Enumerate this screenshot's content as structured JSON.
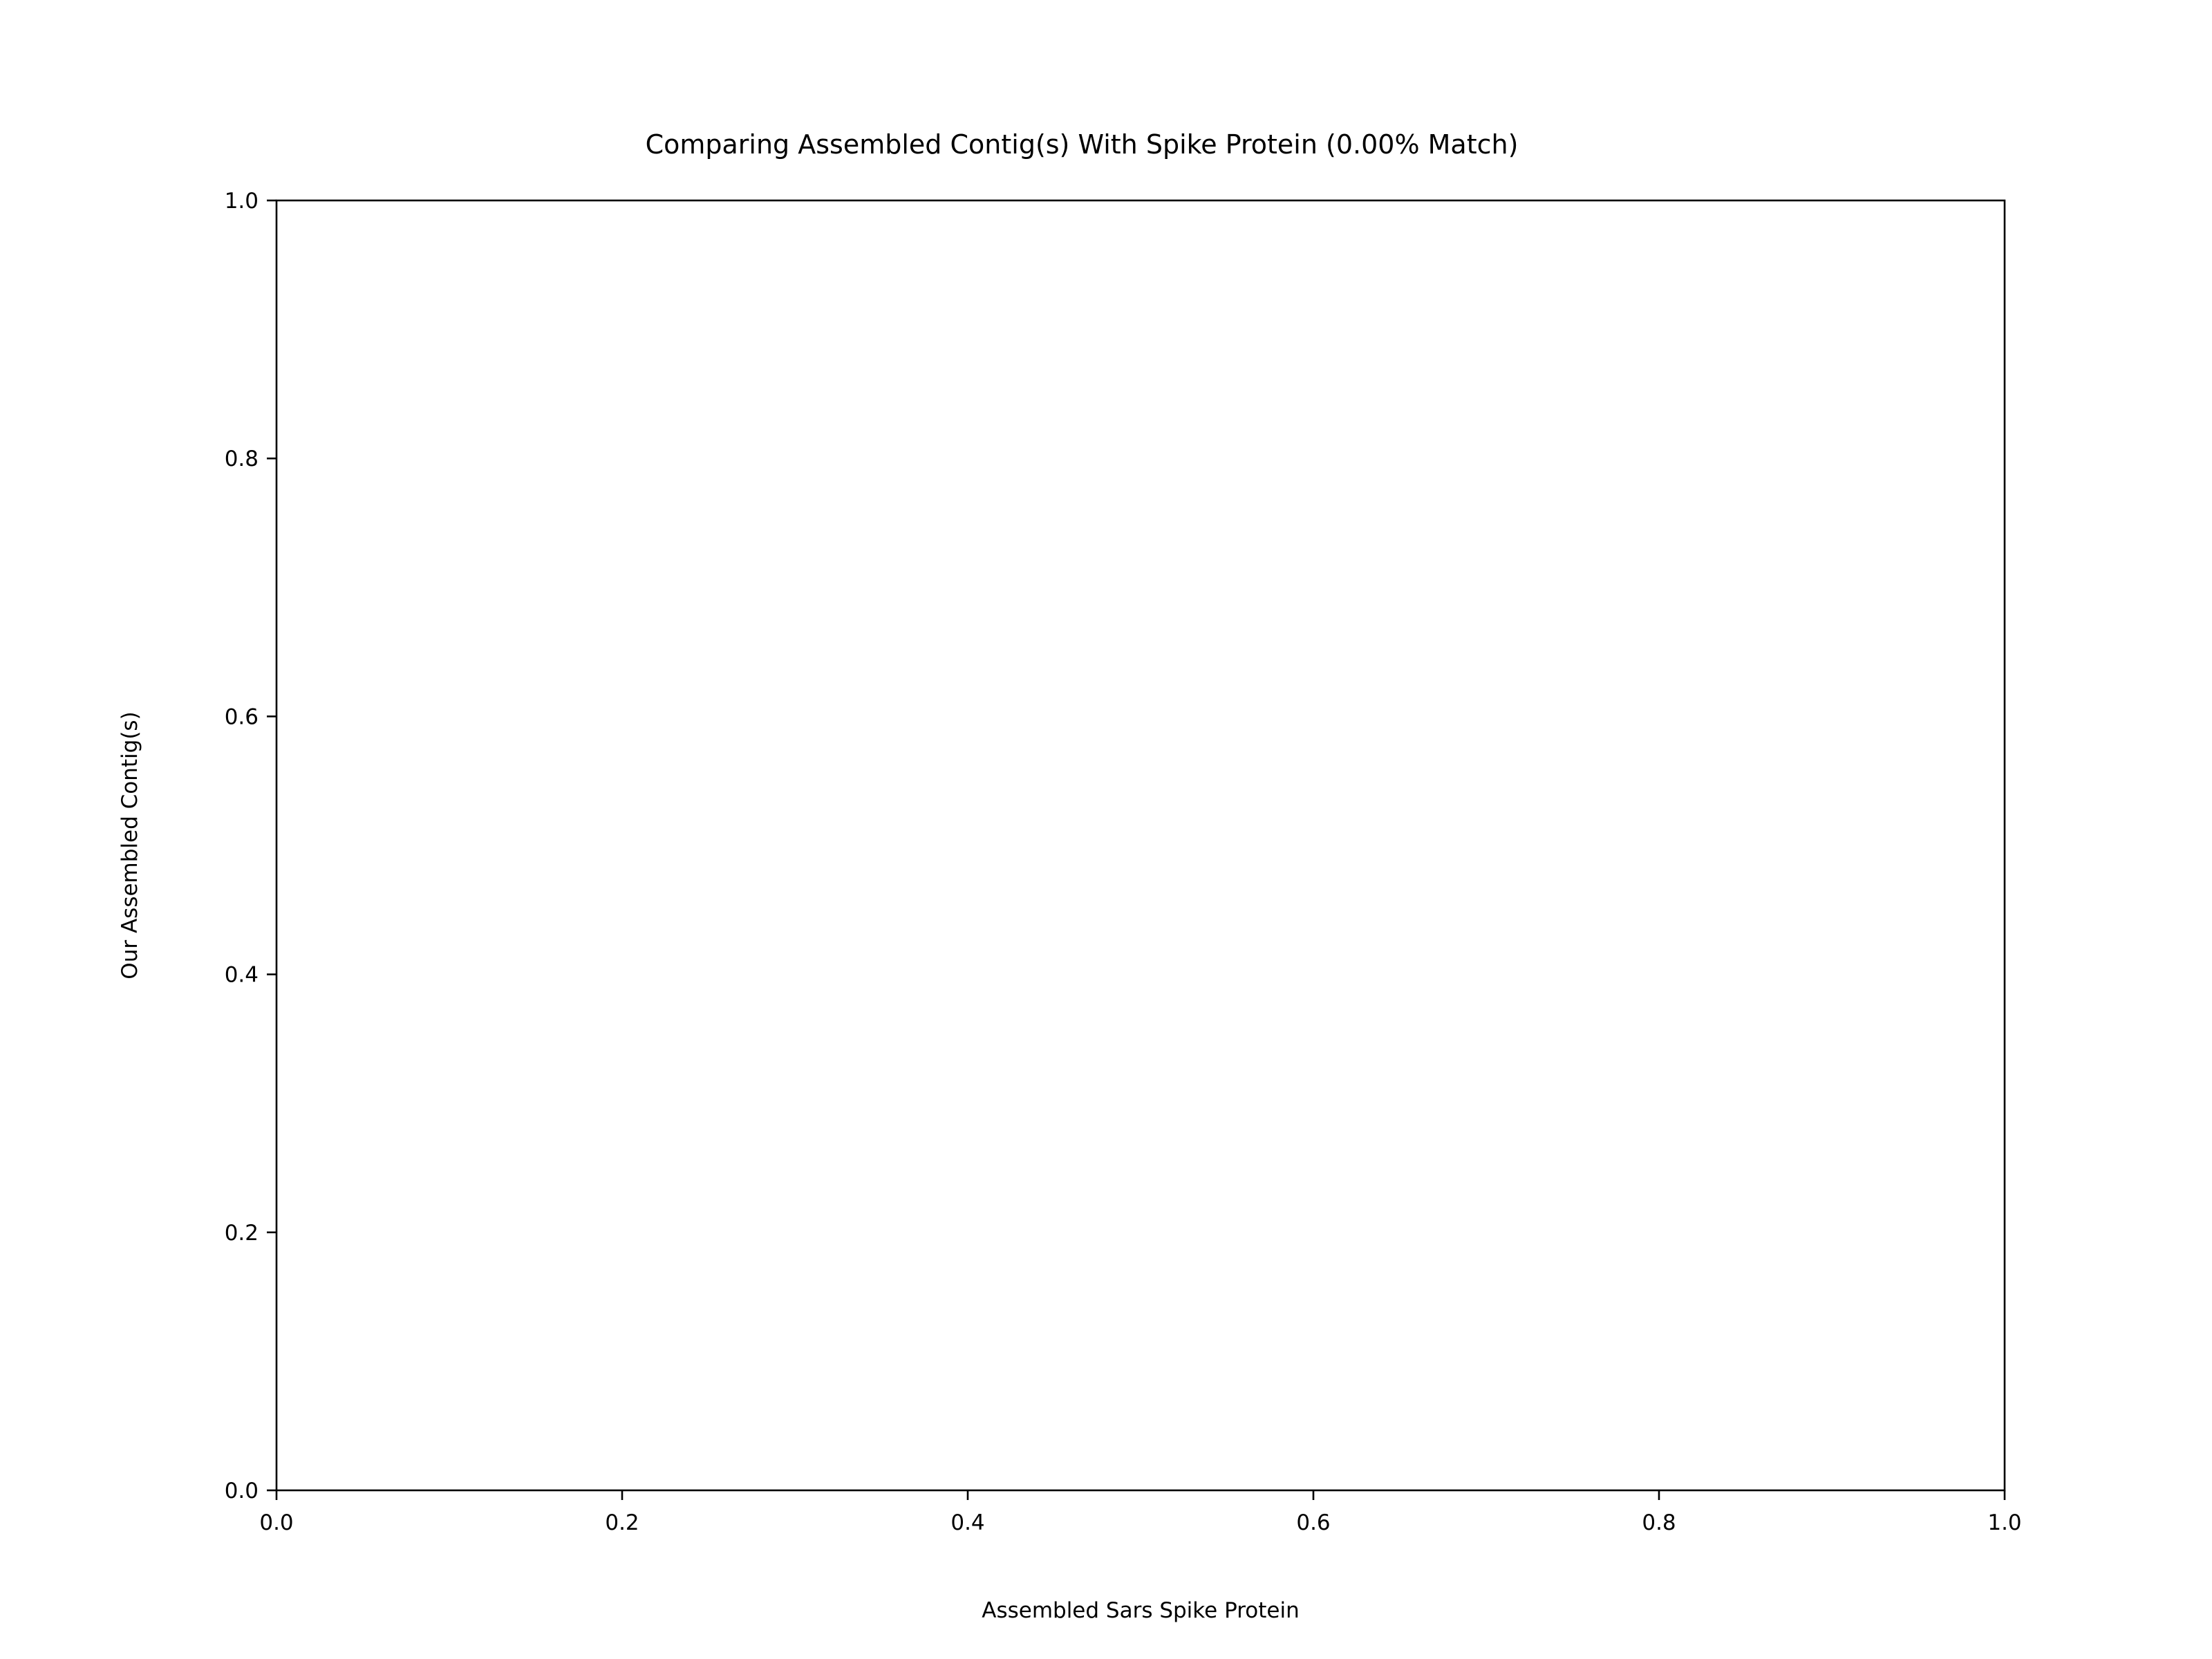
{
  "chart_data": {
    "type": "scatter",
    "title": "Comparing Assembled Contig(s) With Spike Protein (0.00% Match)",
    "xlabel": "Assembled Sars Spike Protein",
    "ylabel": "Our Assembled Contig(s)",
    "xlim": [
      0.0,
      1.0
    ],
    "ylim": [
      0.0,
      1.0
    ],
    "x_ticks": [
      0.0,
      0.2,
      0.4,
      0.6,
      0.8,
      1.0
    ],
    "y_ticks": [
      0.0,
      0.2,
      0.4,
      0.6,
      0.8,
      1.0
    ],
    "x_tick_labels": [
      "0.0",
      "0.2",
      "0.4",
      "0.6",
      "0.8",
      "1.0"
    ],
    "y_tick_labels": [
      "0.0",
      "0.2",
      "0.4",
      "0.6",
      "0.8",
      "1.0"
    ],
    "grid": false,
    "series": [
      {
        "points": []
      }
    ],
    "colors": {
      "axis": "#000000",
      "background": "#ffffff"
    }
  }
}
